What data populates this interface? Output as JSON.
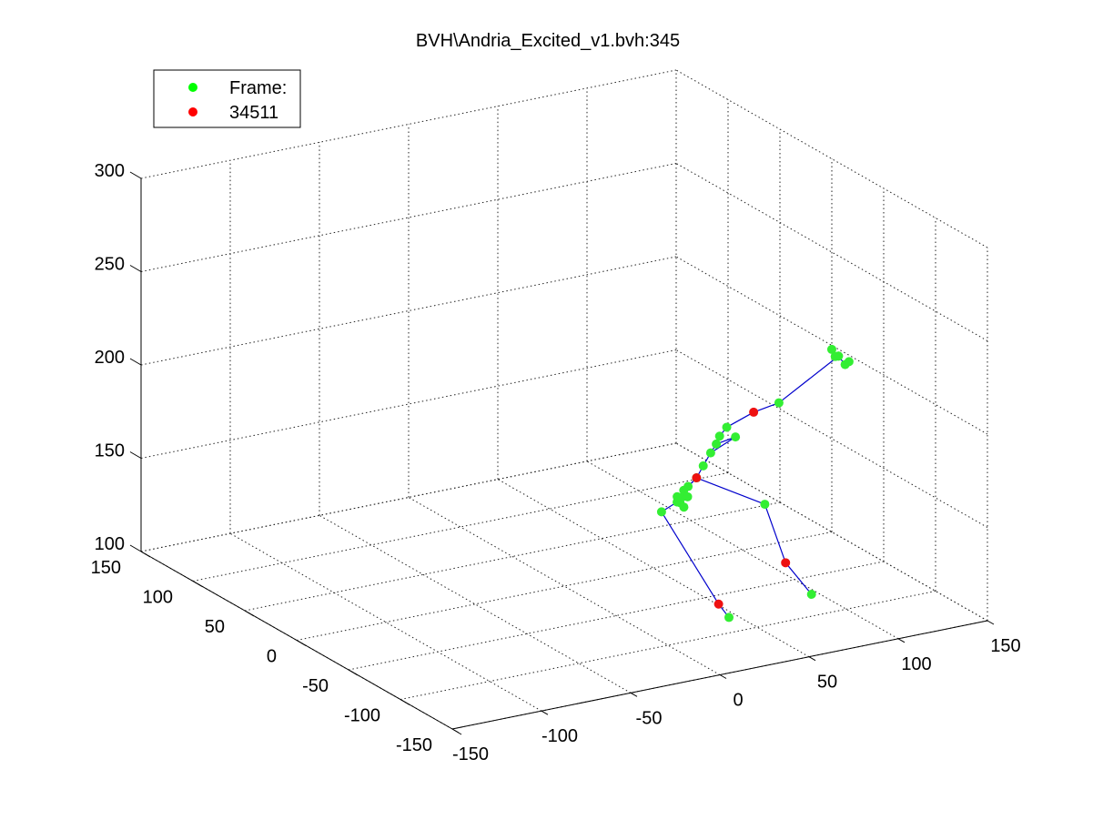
{
  "title": "BVH\\Andria_Excited_v1.bvh:345",
  "legend": {
    "placement": "top-left",
    "entries": [
      {
        "label": "Frame:",
        "color": "#00ff00"
      },
      {
        "label": "34511",
        "color": "#ff0000"
      }
    ]
  },
  "colors": {
    "marker_green": "#33ee33",
    "marker_red": "#ee1111",
    "bone_line": "#0000cc",
    "grid": "#000000",
    "axis": "#000000"
  },
  "chart_data": {
    "type": "scatter",
    "kind": "3d-skeleton",
    "grid": true,
    "x_axis": {
      "range": [
        -150,
        150
      ],
      "ticks": [
        "-150",
        "-100",
        "-50",
        "0",
        "50",
        "100",
        "150"
      ]
    },
    "y_axis": {
      "range": [
        -150,
        150
      ],
      "ticks": [
        "-150",
        "-100",
        "-50",
        "0",
        "50",
        "100",
        "150"
      ]
    },
    "z_axis": {
      "range": [
        100,
        300
      ],
      "ticks": [
        "100",
        "150",
        "200",
        "250",
        "300"
      ]
    },
    "series": [
      {
        "name": "Frame:",
        "color": "#00ff00",
        "points": [
          {
            "x": 40,
            "y": -90,
            "z": 104
          },
          {
            "x": 95,
            "y": -75,
            "z": 101
          },
          {
            "x": 95,
            "y": -30,
            "z": 135
          },
          {
            "x": 40,
            "y": -25,
            "z": 140
          },
          {
            "x": 40,
            "y": -40,
            "z": 150
          },
          {
            "x": 45,
            "y": -42,
            "z": 158
          },
          {
            "x": 48,
            "y": -45,
            "z": 163
          },
          {
            "x": 50,
            "y": -48,
            "z": 170
          },
          {
            "x": 53,
            "y": -50,
            "z": 177
          },
          {
            "x": 55,
            "y": -52,
            "z": 182
          },
          {
            "x": 58,
            "y": -50,
            "z": 185
          },
          {
            "x": 62,
            "y": -50,
            "z": 189
          },
          {
            "x": 64,
            "y": -55,
            "z": 185
          },
          {
            "x": 100,
            "y": -35,
            "z": 190
          },
          {
            "x": 145,
            "y": -15,
            "z": 200
          },
          {
            "x": 147,
            "y": -18,
            "z": 196
          },
          {
            "x": 30,
            "y": -60,
            "z": 158
          },
          {
            "x": 35,
            "y": -55,
            "z": 162
          }
        ]
      },
      {
        "name": "34511",
        "color": "#ff0000",
        "points": [
          {
            "x": 40,
            "y": -80,
            "z": 108
          },
          {
            "x": 95,
            "y": -50,
            "z": 110
          },
          {
            "x": 48,
            "y": -45,
            "z": 163
          },
          {
            "x": 80,
            "y": -45,
            "z": 192
          }
        ]
      }
    ]
  }
}
